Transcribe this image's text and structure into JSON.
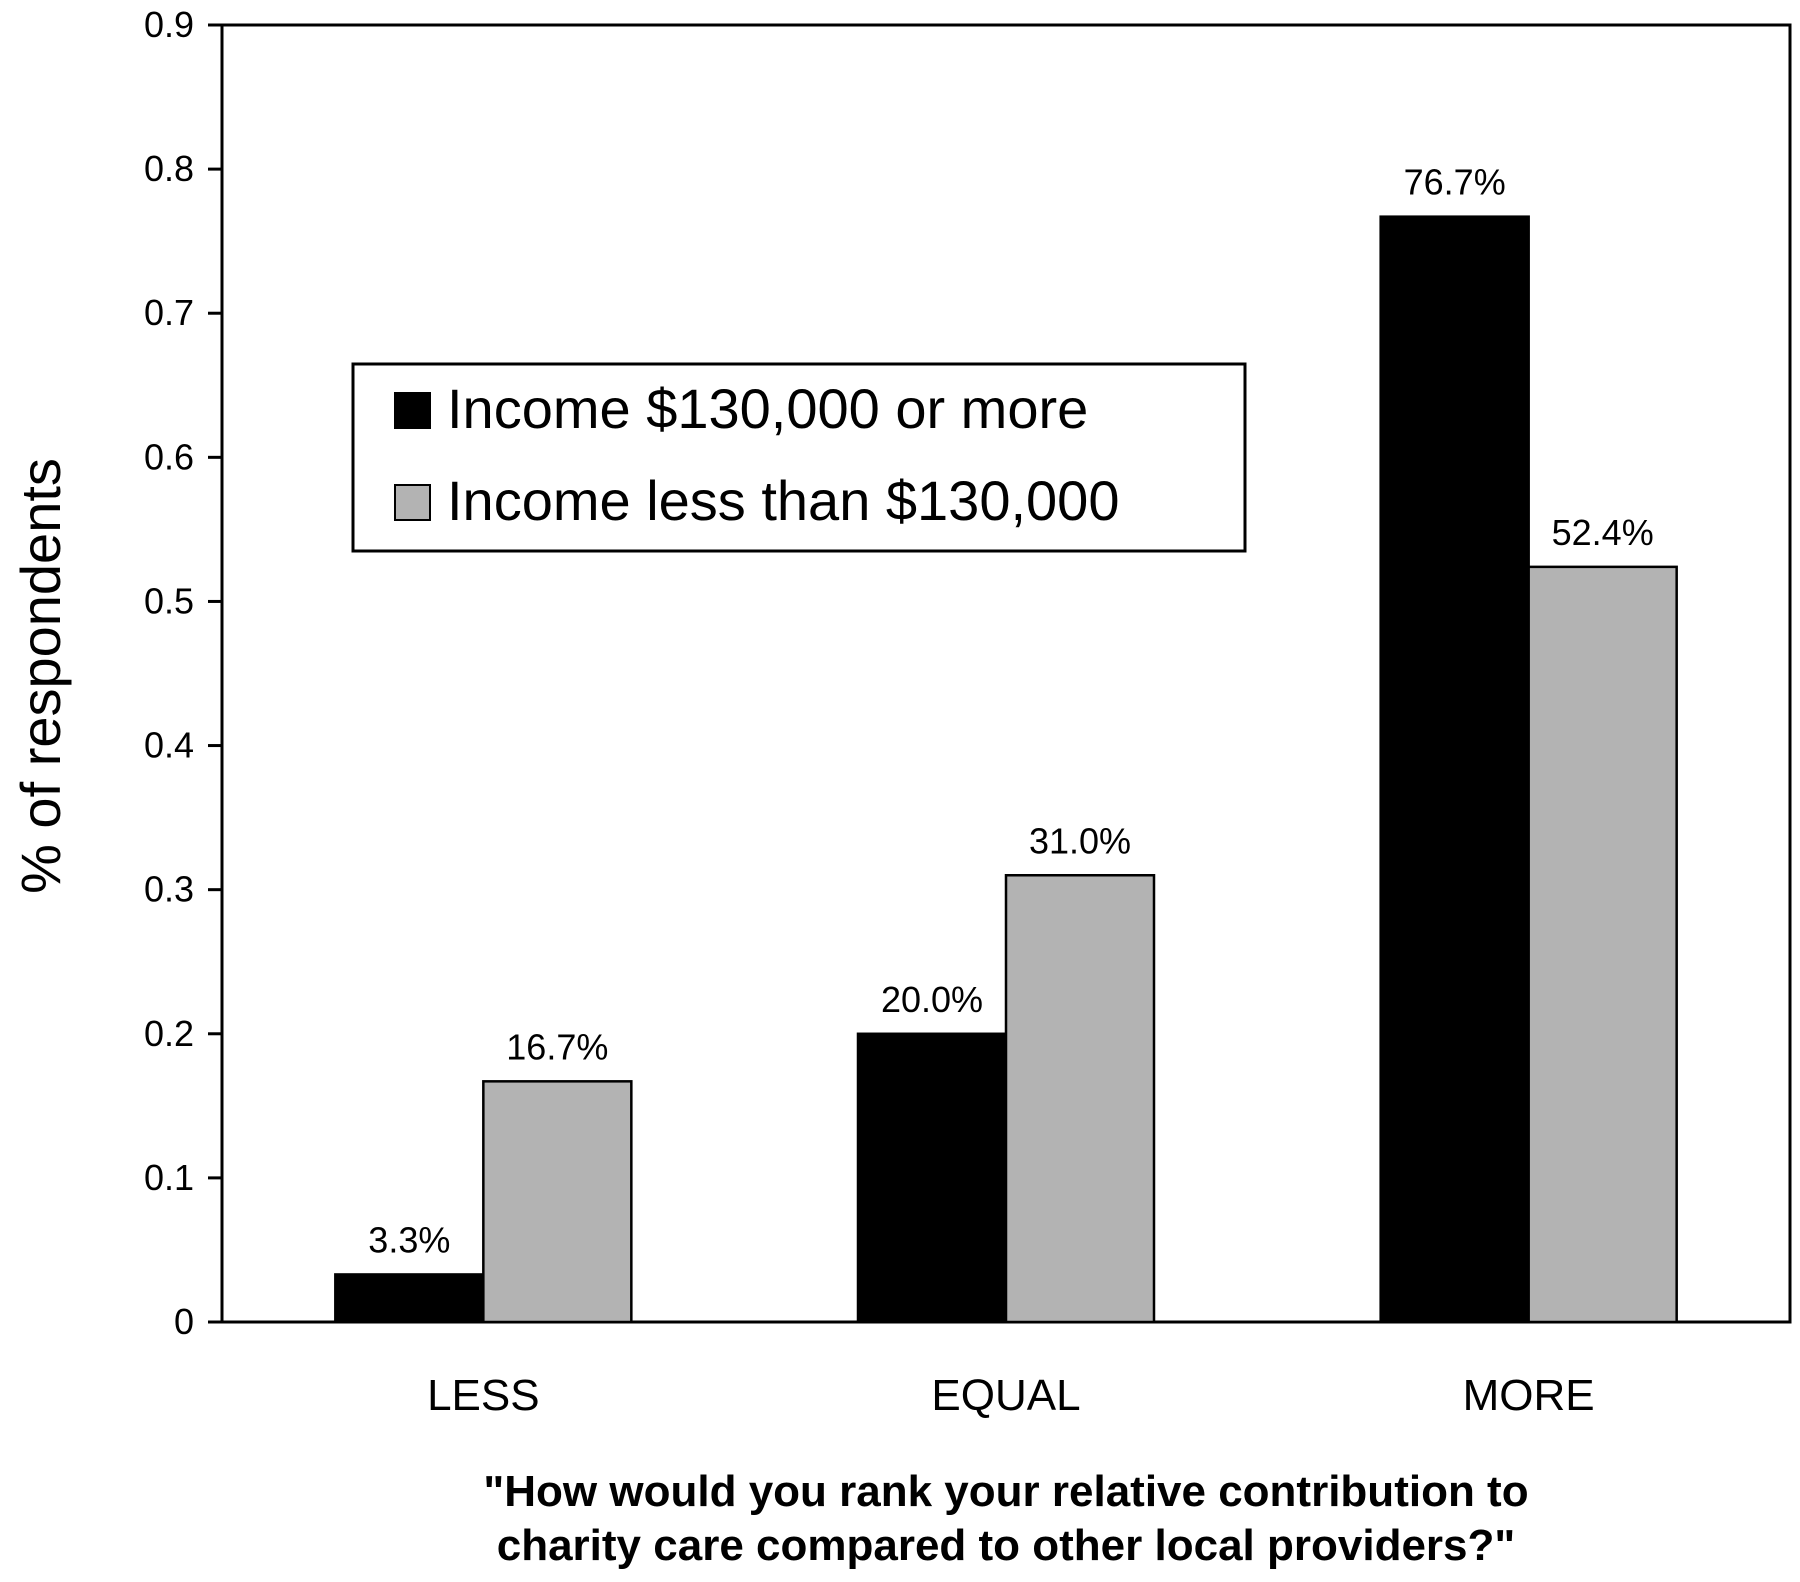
{
  "chart_data": {
    "type": "bar",
    "categories": [
      "LESS",
      "EQUAL",
      "MORE"
    ],
    "series": [
      {
        "name": "Income $130,000 or more",
        "color": "#000000",
        "values": [
          0.033,
          0.2,
          0.767
        ],
        "labels": [
          "3.3%",
          "20.0%",
          "76.7%"
        ]
      },
      {
        "name": "Income less than $130,000",
        "color": "#b3b3b3",
        "values": [
          0.167,
          0.31,
          0.524
        ],
        "labels": [
          "16.7%",
          "31.0%",
          "52.4%"
        ]
      }
    ],
    "ylabel": "% of respondents",
    "xlabel": [
      "\"How would you rank your relative contribution to",
      "charity care compared to other local providers?\""
    ],
    "ylim": [
      0,
      0.9
    ],
    "yticks": [
      "0",
      "0.1",
      "0.2",
      "0.3",
      "0.4",
      "0.5",
      "0.6",
      "0.7",
      "0.8",
      "0.9"
    ],
    "grid": false,
    "legend_position": "upper-left inside plot"
  }
}
